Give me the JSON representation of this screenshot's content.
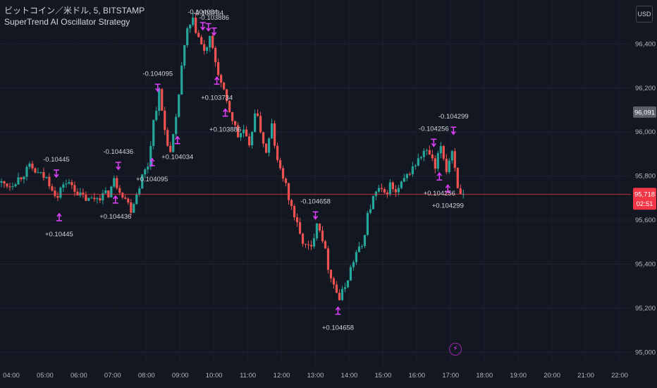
{
  "legend": {
    "symbol_line": "ビットコイン／米ドル, 5, BITSTAMP",
    "indicator_name": "SuperTrend AI Oscillator Strategy"
  },
  "currency_button": "USD",
  "price_axis": {
    "ticks": [
      "96,400",
      "96,200",
      "96,000",
      "95,800",
      "95,600",
      "95,400",
      "95,200",
      "95,000"
    ],
    "tick_values": [
      96400,
      96200,
      96000,
      95800,
      95600,
      95400,
      95200,
      95000
    ],
    "marker_label": "96,091",
    "marker_value": 96091,
    "last_price_label": "95,718",
    "last_price_value": 95718,
    "countdown": "02:51"
  },
  "time_axis": {
    "ticks": [
      "04:00",
      "05:00",
      "06:00",
      "07:00",
      "08:00",
      "09:00",
      "10:00",
      "11:00",
      "12:00",
      "13:00",
      "14:00",
      "15:00",
      "16:00",
      "17:00",
      "18:00",
      "19:00",
      "20:00",
      "21:00",
      "22:00"
    ]
  },
  "bolt_icon_glyph": "⚡",
  "chart_data": {
    "type": "candlestick",
    "title": "ビットコイン／米ドル, 5, BITSTAMP",
    "subtitle": "SuperTrend AI Oscillator Strategy",
    "xlabel": "",
    "ylabel": "",
    "ylim": [
      94940,
      96600
    ],
    "x_range": [
      "03:40",
      "22:20"
    ],
    "colors": {
      "up": "#26a69a",
      "down": "#ef5350",
      "background": "#131722",
      "signal": "#e040fb",
      "entry_arrow": "#2962ff",
      "last_price": "#f23645"
    },
    "price_path": [
      {
        "t": "03:40",
        "p": 95770
      },
      {
        "t": "04:00",
        "p": 95760
      },
      {
        "t": "04:20",
        "p": 95800
      },
      {
        "t": "04:35",
        "p": 95840
      },
      {
        "t": "04:50",
        "p": 95810
      },
      {
        "t": "05:05",
        "p": 95790
      },
      {
        "t": "05:15",
        "p": 95750
      },
      {
        "t": "05:25",
        "p": 95700
      },
      {
        "t": "05:35",
        "p": 95770
      },
      {
        "t": "05:50",
        "p": 95760
      },
      {
        "t": "06:05",
        "p": 95710
      },
      {
        "t": "06:20",
        "p": 95690
      },
      {
        "t": "06:40",
        "p": 95710
      },
      {
        "t": "06:55",
        "p": 95720
      },
      {
        "t": "07:05",
        "p": 95780
      },
      {
        "t": "07:15",
        "p": 95740
      },
      {
        "t": "07:25",
        "p": 95700
      },
      {
        "t": "07:35",
        "p": 95650
      },
      {
        "t": "07:45",
        "p": 95720
      },
      {
        "t": "07:55",
        "p": 95800
      },
      {
        "t": "08:05",
        "p": 95850
      },
      {
        "t": "08:15",
        "p": 96050
      },
      {
        "t": "08:25",
        "p": 96180
      },
      {
        "t": "08:35",
        "p": 96010
      },
      {
        "t": "08:45",
        "p": 95900
      },
      {
        "t": "08:55",
        "p": 96050
      },
      {
        "t": "09:05",
        "p": 96300
      },
      {
        "t": "09:15",
        "p": 96460
      },
      {
        "t": "09:25",
        "p": 96500
      },
      {
        "t": "09:35",
        "p": 96430
      },
      {
        "t": "09:45",
        "p": 96360
      },
      {
        "t": "09:55",
        "p": 96420
      },
      {
        "t": "10:05",
        "p": 96320
      },
      {
        "t": "10:15",
        "p": 96220
      },
      {
        "t": "10:25",
        "p": 96130
      },
      {
        "t": "10:35",
        "p": 96060
      },
      {
        "t": "10:45",
        "p": 95980
      },
      {
        "t": "10:55",
        "p": 96010
      },
      {
        "t": "11:05",
        "p": 95920
      },
      {
        "t": "11:15",
        "p": 96100
      },
      {
        "t": "11:25",
        "p": 96010
      },
      {
        "t": "11:35",
        "p": 95900
      },
      {
        "t": "11:45",
        "p": 96030
      },
      {
        "t": "11:55",
        "p": 95860
      },
      {
        "t": "12:05",
        "p": 95800
      },
      {
        "t": "12:15",
        "p": 95700
      },
      {
        "t": "12:25",
        "p": 95620
      },
      {
        "t": "12:35",
        "p": 95530
      },
      {
        "t": "12:45",
        "p": 95480
      },
      {
        "t": "12:55",
        "p": 95470
      },
      {
        "t": "13:05",
        "p": 95600
      },
      {
        "t": "13:15",
        "p": 95520
      },
      {
        "t": "13:25",
        "p": 95390
      },
      {
        "t": "13:35",
        "p": 95310
      },
      {
        "t": "13:45",
        "p": 95240
      },
      {
        "t": "13:55",
        "p": 95300
      },
      {
        "t": "14:05",
        "p": 95380
      },
      {
        "t": "14:15",
        "p": 95450
      },
      {
        "t": "14:25",
        "p": 95480
      },
      {
        "t": "14:35",
        "p": 95620
      },
      {
        "t": "14:45",
        "p": 95700
      },
      {
        "t": "14:55",
        "p": 95740
      },
      {
        "t": "15:05",
        "p": 95710
      },
      {
        "t": "15:15",
        "p": 95760
      },
      {
        "t": "15:25",
        "p": 95720
      },
      {
        "t": "15:35",
        "p": 95760
      },
      {
        "t": "15:45",
        "p": 95800
      },
      {
        "t": "15:55",
        "p": 95840
      },
      {
        "t": "16:05",
        "p": 95870
      },
      {
        "t": "16:15",
        "p": 95910
      },
      {
        "t": "16:25",
        "p": 95900
      },
      {
        "t": "16:35",
        "p": 95830
      },
      {
        "t": "16:45",
        "p": 95940
      },
      {
        "t": "16:55",
        "p": 95830
      },
      {
        "t": "17:05",
        "p": 95920
      },
      {
        "t": "17:15",
        "p": 95760
      },
      {
        "t": "17:20",
        "p": 95718
      }
    ],
    "signals": [
      {
        "t": "05:20",
        "label": "-0.10445",
        "kind": "short"
      },
      {
        "t": "05:25",
        "label": "+0.10445",
        "kind": "long"
      },
      {
        "t": "07:10",
        "label": "-0.104436",
        "kind": "short"
      },
      {
        "t": "07:05",
        "label": "+0.104436",
        "kind": "long"
      },
      {
        "t": "08:20",
        "label": "-0.104095",
        "kind": "short"
      },
      {
        "t": "08:10",
        "label": "+0.104095",
        "kind": "long"
      },
      {
        "t": "09:40",
        "label": "-0.104034",
        "kind": "short"
      },
      {
        "t": "08:55",
        "label": "+0.104034",
        "kind": "long"
      },
      {
        "t": "09:50",
        "label": "-0.103734",
        "kind": "short"
      },
      {
        "t": "10:05",
        "label": "+0.103734",
        "kind": "long"
      },
      {
        "t": "10:00",
        "label": "-0.103886",
        "kind": "short"
      },
      {
        "t": "10:20",
        "label": "+0.103886",
        "kind": "long"
      },
      {
        "t": "13:40",
        "label": "+0.104658",
        "kind": "long"
      },
      {
        "t": "13:00",
        "label": "-0.104658",
        "kind": "short"
      },
      {
        "t": "16:30",
        "label": "-0.104256",
        "kind": "short"
      },
      {
        "t": "16:40",
        "label": "+0.104256",
        "kind": "long"
      },
      {
        "t": "17:05",
        "label": "-0.104299",
        "kind": "short"
      },
      {
        "t": "16:55",
        "label": "+0.104299",
        "kind": "long"
      }
    ]
  }
}
